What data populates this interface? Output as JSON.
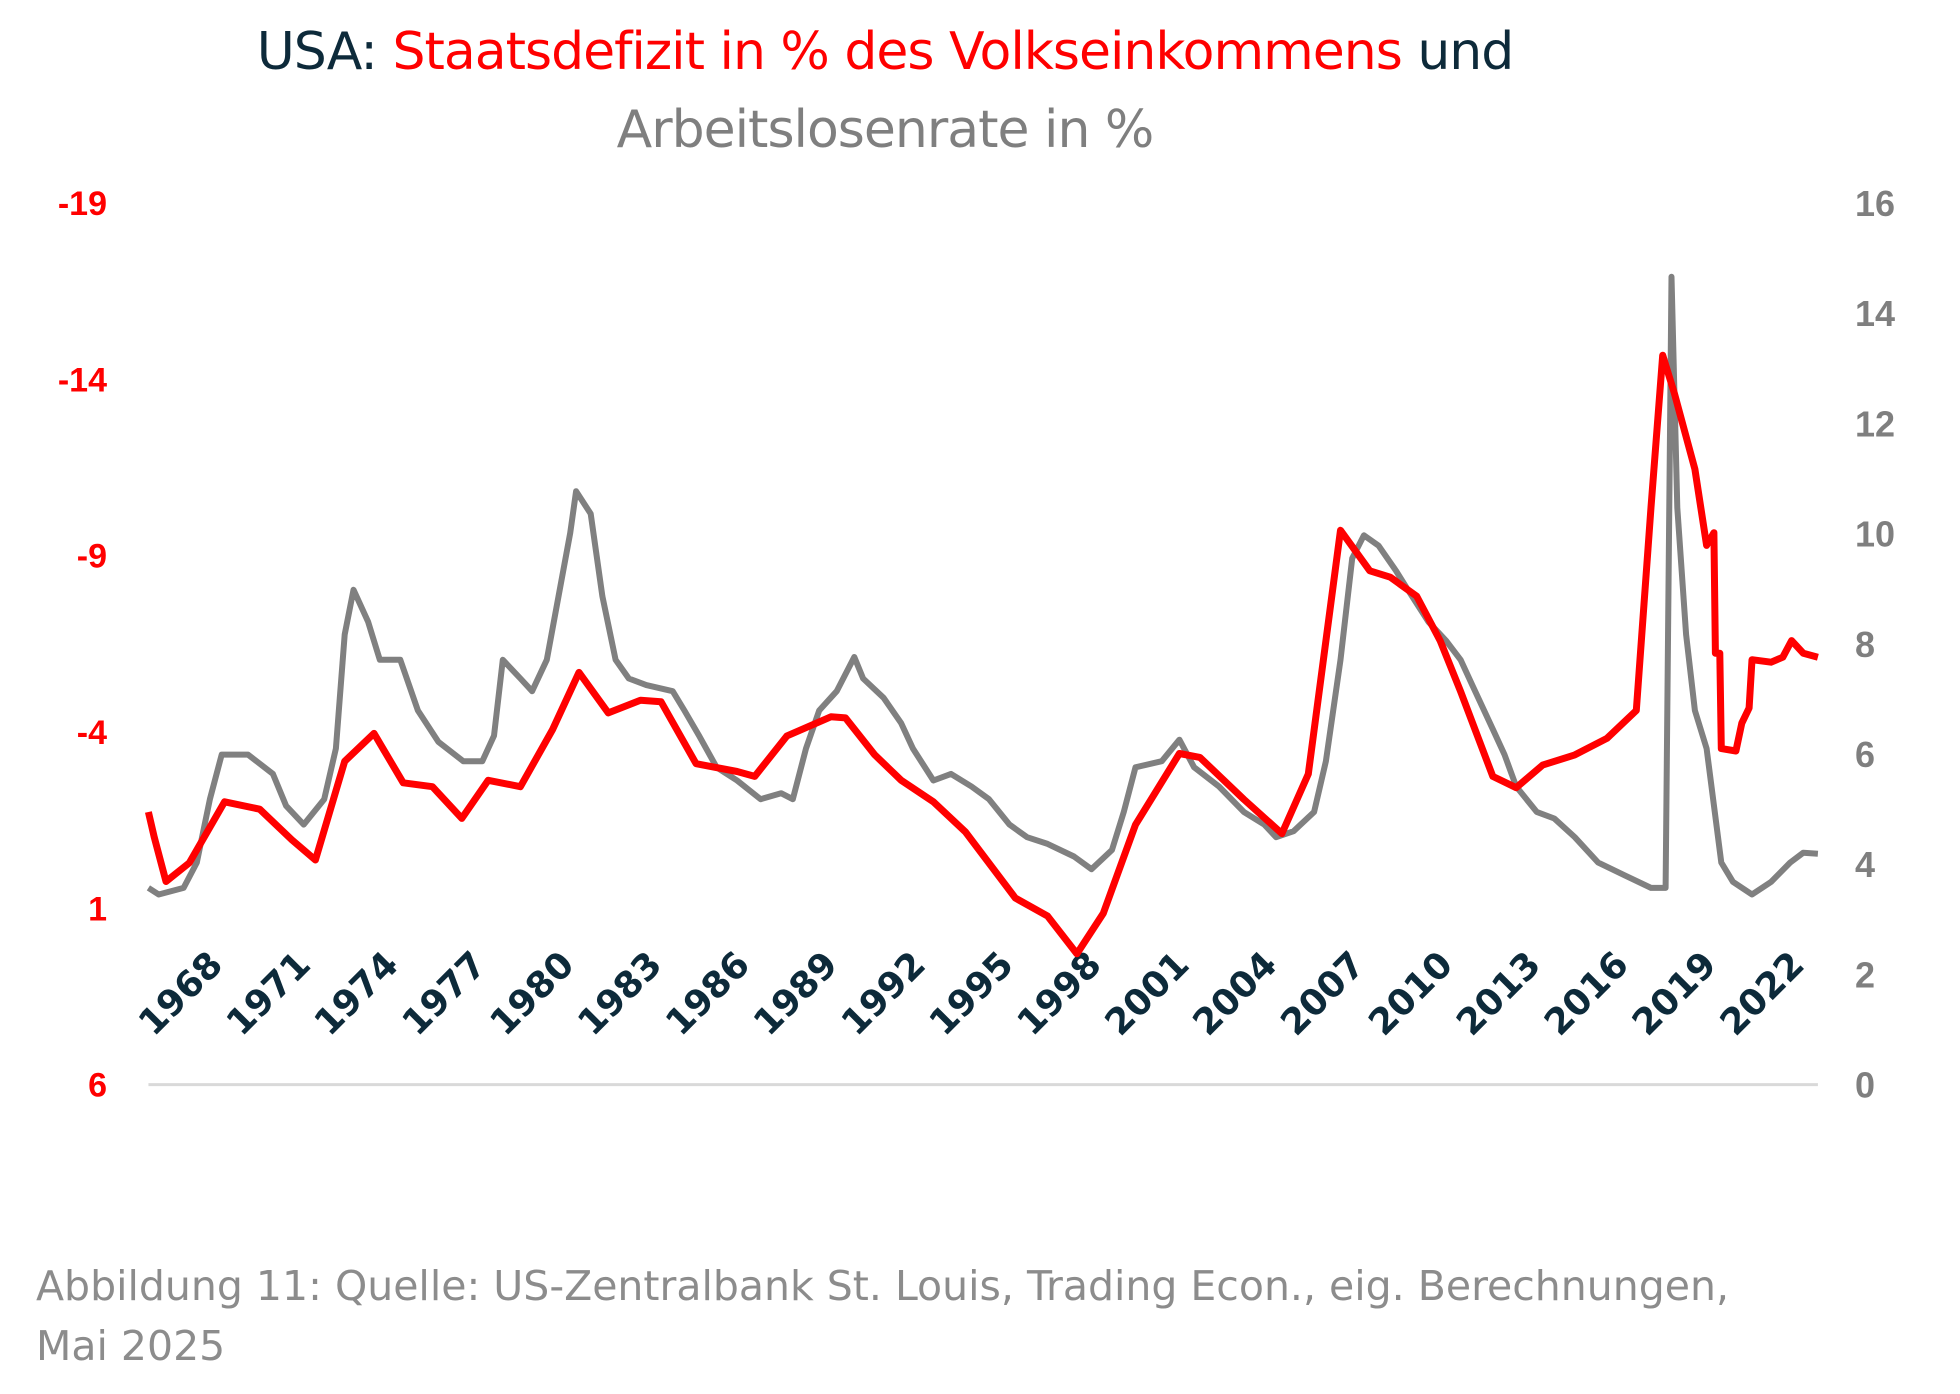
{
  "title": {
    "prefix": "USA: ",
    "highlight": "Staatsdefizit in % des Volkseinkommens",
    "suffix": " und",
    "line2": "Arbeitslosenrate in %"
  },
  "caption": {
    "line1": "Abbildung 11: Quelle: US-Zentralbank St. Louis, Trading Econ., eig. Berechnungen,",
    "line2": "Mai 2025"
  },
  "colors": {
    "deficit": "#ff0000",
    "unemployment": "#808080",
    "title": "#0d2a3a",
    "tick": "#0d2a3a",
    "baseline": "#d9d9d9"
  },
  "chart_data": {
    "type": "line",
    "title": "USA: Staatsdefizit in % des Volkseinkommens und Arbeitslosenrate in %",
    "x_tick_labels": [
      "1968",
      "1971",
      "1974",
      "1977",
      "1980",
      "1983",
      "1986",
      "1989",
      "1992",
      "1995",
      "1998",
      "2001",
      "2004",
      "2007",
      "2010",
      "2013",
      "2016",
      "2019",
      "2022"
    ],
    "xlim": [
      1968.3,
      2025.3
    ],
    "left_axis": {
      "ylim": [
        6,
        -19
      ],
      "ticks": [
        "-19",
        "-14",
        "-9",
        "-4",
        "1",
        "6"
      ],
      "inverted": true
    },
    "right_axis": {
      "ylim": [
        0,
        16
      ],
      "ticks": [
        "16",
        "14",
        "12",
        "10",
        "8",
        "6",
        "4",
        "2",
        "0"
      ]
    },
    "grid": false,
    "series": [
      {
        "name": "Staatsdefizit in % des Volkseinkommens",
        "axis": "left",
        "points": [
          [
            1968.3,
            -1.73
          ],
          [
            1968.5,
            -1.01
          ],
          [
            1968.9,
            0.24
          ],
          [
            1969.7,
            -0.29
          ],
          [
            1970.9,
            -2.02
          ],
          [
            1972.1,
            -1.81
          ],
          [
            1973.2,
            -0.94
          ],
          [
            1974.0,
            -0.37
          ],
          [
            1975.0,
            -3.17
          ],
          [
            1976.0,
            -3.96
          ],
          [
            1977.0,
            -2.56
          ],
          [
            1978.0,
            -2.45
          ],
          [
            1979.0,
            -1.55
          ],
          [
            1979.9,
            -2.63
          ],
          [
            1981.0,
            -2.45
          ],
          [
            1982.1,
            -4.07
          ],
          [
            1983.0,
            -5.69
          ],
          [
            1984.0,
            -4.54
          ],
          [
            1985.1,
            -4.9
          ],
          [
            1985.8,
            -4.86
          ],
          [
            1987.0,
            -3.1
          ],
          [
            1988.4,
            -2.88
          ],
          [
            1989.0,
            -2.74
          ],
          [
            1990.1,
            -3.89
          ],
          [
            1991.6,
            -4.43
          ],
          [
            1992.1,
            -4.4
          ],
          [
            1993.1,
            -3.35
          ],
          [
            1994.0,
            -2.63
          ],
          [
            1995.1,
            -2.02
          ],
          [
            1996.2,
            -1.16
          ],
          [
            1997.9,
            0.71
          ],
          [
            1999.0,
            1.22
          ],
          [
            2000.0,
            2.29
          ],
          [
            2000.9,
            1.14
          ],
          [
            2002.0,
            -1.37
          ],
          [
            2003.5,
            -3.39
          ],
          [
            2004.2,
            -3.28
          ],
          [
            2005.7,
            -2.09
          ],
          [
            2007.0,
            -1.12
          ],
          [
            2007.9,
            -2.81
          ],
          [
            2009.0,
            -9.72
          ],
          [
            2010.0,
            -8.57
          ],
          [
            2010.7,
            -8.39
          ],
          [
            2011.6,
            -7.85
          ],
          [
            2012.4,
            -6.59
          ],
          [
            2013.1,
            -5.15
          ],
          [
            2014.2,
            -2.74
          ],
          [
            2015.0,
            -2.42
          ],
          [
            2015.9,
            -3.06
          ],
          [
            2017.0,
            -3.35
          ],
          [
            2018.1,
            -3.82
          ],
          [
            2019.1,
            -4.61
          ],
          [
            2019.6,
            -10.37
          ],
          [
            2020.0,
            -14.68
          ],
          [
            2020.4,
            -13.6
          ],
          [
            2021.1,
            -11.45
          ],
          [
            2021.5,
            -9.29
          ],
          [
            2021.75,
            -9.65
          ],
          [
            2021.8,
            -6.23
          ],
          [
            2021.95,
            -6.23
          ],
          [
            2022.0,
            -3.53
          ],
          [
            2022.5,
            -3.46
          ],
          [
            2022.7,
            -4.25
          ],
          [
            2022.95,
            -4.68
          ],
          [
            2023.05,
            -6.05
          ],
          [
            2023.7,
            -5.98
          ],
          [
            2024.1,
            -6.12
          ],
          [
            2024.4,
            -6.59
          ],
          [
            2024.8,
            -6.23
          ],
          [
            2025.3,
            -6.12
          ]
        ]
      },
      {
        "name": "Arbeitslosenrate in %",
        "axis": "right",
        "points": [
          [
            1968.3,
            3.57
          ],
          [
            1968.65,
            3.45
          ],
          [
            1969.5,
            3.57
          ],
          [
            1969.95,
            4.03
          ],
          [
            1970.4,
            5.18
          ],
          [
            1970.8,
            5.99
          ],
          [
            1971.7,
            5.99
          ],
          [
            1972.55,
            5.64
          ],
          [
            1973.0,
            5.06
          ],
          [
            1973.6,
            4.72
          ],
          [
            1974.3,
            5.18
          ],
          [
            1974.7,
            6.1
          ],
          [
            1975.0,
            8.17
          ],
          [
            1975.3,
            8.98
          ],
          [
            1975.8,
            8.4
          ],
          [
            1976.2,
            7.71
          ],
          [
            1976.9,
            7.71
          ],
          [
            1977.5,
            6.79
          ],
          [
            1978.2,
            6.22
          ],
          [
            1979.05,
            5.87
          ],
          [
            1979.7,
            5.87
          ],
          [
            1980.1,
            6.33
          ],
          [
            1980.4,
            7.71
          ],
          [
            1981.0,
            7.37
          ],
          [
            1981.4,
            7.14
          ],
          [
            1981.9,
            7.71
          ],
          [
            1982.3,
            8.86
          ],
          [
            1982.7,
            10.01
          ],
          [
            1982.9,
            10.77
          ],
          [
            1983.4,
            10.36
          ],
          [
            1983.8,
            8.86
          ],
          [
            1984.25,
            7.71
          ],
          [
            1984.7,
            7.37
          ],
          [
            1985.3,
            7.25
          ],
          [
            1986.2,
            7.14
          ],
          [
            1986.6,
            6.79
          ],
          [
            1987.1,
            6.33
          ],
          [
            1987.7,
            5.76
          ],
          [
            1988.4,
            5.52
          ],
          [
            1989.2,
            5.18
          ],
          [
            1989.9,
            5.29
          ],
          [
            1990.3,
            5.18
          ],
          [
            1990.75,
            6.1
          ],
          [
            1991.2,
            6.79
          ],
          [
            1991.8,
            7.14
          ],
          [
            1992.4,
            7.76
          ],
          [
            1992.7,
            7.37
          ],
          [
            1993.4,
            7.02
          ],
          [
            1994.0,
            6.56
          ],
          [
            1994.4,
            6.1
          ],
          [
            1995.1,
            5.52
          ],
          [
            1995.7,
            5.64
          ],
          [
            1996.4,
            5.41
          ],
          [
            1997.0,
            5.18
          ],
          [
            1997.7,
            4.72
          ],
          [
            1998.3,
            4.49
          ],
          [
            1999.0,
            4.37
          ],
          [
            1999.9,
            4.14
          ],
          [
            2000.5,
            3.91
          ],
          [
            2001.2,
            4.26
          ],
          [
            2001.6,
            4.95
          ],
          [
            2002.0,
            5.76
          ],
          [
            2002.9,
            5.87
          ],
          [
            2003.5,
            6.26
          ],
          [
            2004.0,
            5.76
          ],
          [
            2004.85,
            5.41
          ],
          [
            2005.7,
            4.95
          ],
          [
            2006.4,
            4.72
          ],
          [
            2006.8,
            4.49
          ],
          [
            2007.4,
            4.6
          ],
          [
            2008.1,
            4.95
          ],
          [
            2008.5,
            5.87
          ],
          [
            2009.0,
            7.71
          ],
          [
            2009.4,
            9.55
          ],
          [
            2009.8,
            9.97
          ],
          [
            2010.3,
            9.78
          ],
          [
            2010.9,
            9.32
          ],
          [
            2011.3,
            8.98
          ],
          [
            2012.0,
            8.4
          ],
          [
            2012.6,
            8.06
          ],
          [
            2013.1,
            7.71
          ],
          [
            2013.5,
            7.25
          ],
          [
            2014.2,
            6.45
          ],
          [
            2014.6,
            5.99
          ],
          [
            2015.0,
            5.41
          ],
          [
            2015.7,
            4.95
          ],
          [
            2016.3,
            4.83
          ],
          [
            2017.0,
            4.49
          ],
          [
            2017.8,
            4.03
          ],
          [
            2018.7,
            3.8
          ],
          [
            2019.6,
            3.57
          ],
          [
            2020.1,
            3.57
          ],
          [
            2020.3,
            14.66
          ],
          [
            2020.5,
            10.47
          ],
          [
            2020.8,
            8.17
          ],
          [
            2021.1,
            6.79
          ],
          [
            2021.5,
            6.1
          ],
          [
            2022.0,
            4.03
          ],
          [
            2022.4,
            3.68
          ],
          [
            2023.05,
            3.45
          ],
          [
            2023.7,
            3.68
          ],
          [
            2024.35,
            4.03
          ],
          [
            2024.8,
            4.21
          ],
          [
            2025.3,
            4.19
          ]
        ]
      }
    ],
    "legend": "none (series identified by title colors)"
  }
}
